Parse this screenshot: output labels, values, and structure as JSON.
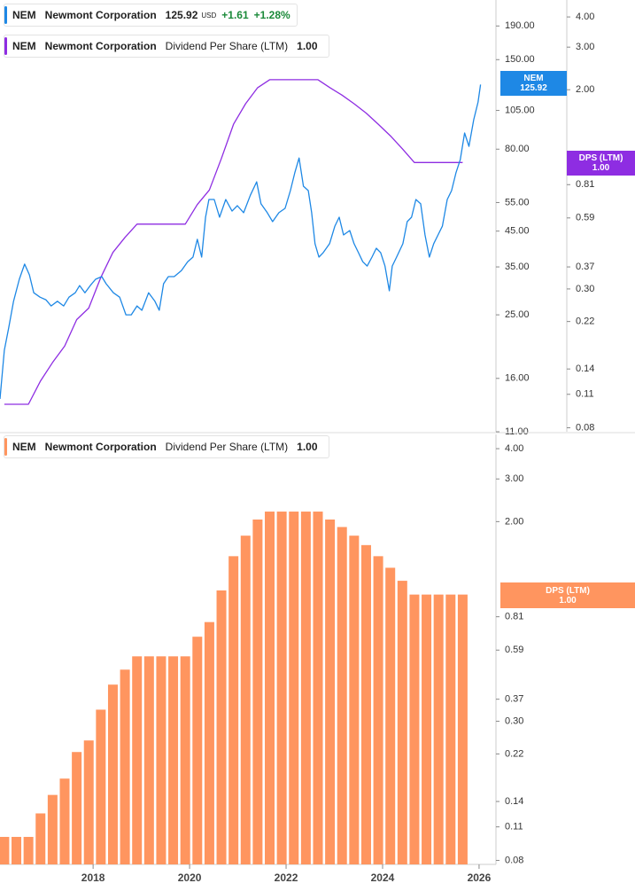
{
  "chart_data": [
    {
      "type": "line",
      "log_scale": true,
      "legend": [
        {
          "ticker": "NEM",
          "name": "Newmont Corporation",
          "price": "125.92",
          "currency": "USD",
          "change": "+1.61",
          "change_pct": "+1.28%"
        },
        {
          "ticker": "NEM",
          "name": "Newmont Corporation",
          "metric": "Dividend Per Share (LTM)",
          "value": "1.00"
        }
      ],
      "xlim": [
        2016.07,
        2026.35
      ],
      "ylim": [
        11,
        228
      ],
      "yticks": [
        {
          "value": 190,
          "label": "190.00"
        },
        {
          "value": 150,
          "label": "150.00"
        },
        {
          "value": 105,
          "label": "105.00"
        },
        {
          "value": 80,
          "label": "80.00"
        },
        {
          "value": 55,
          "label": "55.00"
        },
        {
          "value": 45,
          "label": "45.00"
        },
        {
          "value": 35,
          "label": "35.00"
        },
        {
          "value": 25,
          "label": "25.00"
        },
        {
          "value": 16,
          "label": "16.00"
        },
        {
          "value": 11,
          "label": "11.00"
        }
      ],
      "y2lim": [
        0.077,
        4.7
      ],
      "y2ticks": [
        {
          "value": 4,
          "label": "4.00"
        },
        {
          "value": 3,
          "label": "3.00"
        },
        {
          "value": 2,
          "label": "2.00"
        },
        {
          "value": 0.81,
          "label": "0.81"
        },
        {
          "value": 0.59,
          "label": "0.59"
        },
        {
          "value": 0.37,
          "label": "0.37"
        },
        {
          "value": 0.3,
          "label": "0.30"
        },
        {
          "value": 0.22,
          "label": "0.22"
        },
        {
          "value": 0.14,
          "label": "0.14"
        },
        {
          "value": 0.11,
          "label": "0.11"
        },
        {
          "value": 0.08,
          "label": "0.08"
        }
      ],
      "series": [
        {
          "name": "NEM",
          "color": "#1e88e5",
          "x": [
            2016.07,
            2016.16,
            2016.25,
            2016.35,
            2016.47,
            2016.58,
            2016.68,
            2016.77,
            2016.9,
            2017.02,
            2017.13,
            2017.26,
            2017.39,
            2017.5,
            2017.63,
            2017.72,
            2017.83,
            2017.94,
            2018.05,
            2018.18,
            2018.27,
            2018.42,
            2018.55,
            2018.68,
            2018.79,
            2018.91,
            2019.01,
            2019.15,
            2019.28,
            2019.37,
            2019.46,
            2019.56,
            2019.68,
            2019.83,
            2019.96,
            2020.07,
            2020.16,
            2020.25,
            2020.33,
            2020.4,
            2020.51,
            2020.62,
            2020.75,
            2020.88,
            2020.99,
            2021.12,
            2021.26,
            2021.39,
            2021.48,
            2021.61,
            2021.72,
            2021.85,
            2021.98,
            2022.09,
            2022.18,
            2022.27,
            2022.36,
            2022.46,
            2022.53,
            2022.6,
            2022.68,
            2022.77,
            2022.9,
            2023.01,
            2023.1,
            2023.19,
            2023.32,
            2023.41,
            2023.5,
            2023.59,
            2023.68,
            2023.78,
            2023.87,
            2023.96,
            2024.05,
            2024.14,
            2024.2,
            2024.29,
            2024.42,
            2024.51,
            2024.6,
            2024.69,
            2024.79,
            2024.88,
            2024.97,
            2025.06,
            2025.15,
            2025.24,
            2025.34,
            2025.43,
            2025.52,
            2025.61,
            2025.7,
            2025.79,
            2025.89,
            2025.98,
            2026.03
          ],
          "values": [
            13.85,
            19.5,
            22.8,
            27.5,
            32.1,
            35.7,
            33.1,
            29.2,
            28.3,
            27.8,
            26.6,
            27.5,
            26.6,
            28.3,
            29.2,
            30.7,
            29.2,
            30.7,
            32.1,
            32.7,
            31.1,
            29.2,
            28.3,
            25.0,
            25.0,
            26.6,
            25.8,
            29.2,
            27.5,
            25.8,
            31.1,
            32.7,
            32.7,
            34.1,
            36.3,
            37.5,
            42.5,
            37.5,
            49.6,
            56.2,
            56.2,
            49.6,
            56.2,
            51.8,
            53.8,
            51.2,
            57.9,
            63.6,
            54.5,
            51.2,
            48.1,
            51.2,
            52.8,
            59.8,
            67.7,
            75.2,
            61.7,
            59.8,
            51.2,
            41.2,
            37.5,
            38.7,
            41.2,
            46.6,
            49.6,
            43.8,
            45.2,
            41.2,
            38.7,
            36.3,
            35.2,
            37.5,
            39.9,
            38.7,
            35.2,
            29.6,
            35.2,
            37.5,
            41.2,
            48.1,
            49.6,
            56.2,
            54.5,
            43.8,
            37.5,
            41.2,
            43.8,
            46.6,
            56.2,
            59.8,
            67.7,
            74.3,
            89.6,
            81.6,
            98.4,
            111.4,
            125.92
          ]
        },
        {
          "name": "DPS (LTM)",
          "color": "#8e2de2",
          "axis": "y2",
          "last_value_label": "1.00",
          "x": [
            2016.16,
            2016.41,
            2016.66,
            2016.91,
            2017.16,
            2017.41,
            2017.66,
            2017.91,
            2018.16,
            2018.41,
            2018.66,
            2018.91,
            2019.16,
            2019.41,
            2019.66,
            2019.91,
            2020.16,
            2020.41,
            2020.66,
            2020.91,
            2021.16,
            2021.41,
            2021.66,
            2021.91,
            2022.16,
            2022.41,
            2022.66,
            2022.91,
            2023.16,
            2023.41,
            2023.66,
            2023.91,
            2024.16,
            2024.41,
            2024.66,
            2024.91,
            2025.16,
            2025.41,
            2025.66
          ],
          "values": [
            0.1,
            0.1,
            0.1,
            0.125,
            0.149,
            0.174,
            0.224,
            0.25,
            0.335,
            0.425,
            0.49,
            0.556,
            0.556,
            0.556,
            0.556,
            0.556,
            0.67,
            0.77,
            1.04,
            1.44,
            1.75,
            2.04,
            2.2,
            2.2,
            2.2,
            2.2,
            2.2,
            2.04,
            1.9,
            1.75,
            1.6,
            1.44,
            1.29,
            1.14,
            1.0,
            1.0,
            1.0,
            1.0,
            1.0
          ]
        }
      ]
    },
    {
      "type": "bar",
      "log_scale": true,
      "legend": [
        {
          "ticker": "NEM",
          "name": "Newmont Corporation",
          "metric": "Dividend Per Share (LTM)",
          "value": "1.00"
        }
      ],
      "xlim": [
        2016.07,
        2026.35
      ],
      "xticks": [
        2018,
        2020,
        2022,
        2024,
        2026
      ],
      "ylim": [
        0.077,
        4.58
      ],
      "yticks": [
        {
          "value": 4,
          "label": "4.00"
        },
        {
          "value": 3,
          "label": "3.00"
        },
        {
          "value": 2,
          "label": "2.00"
        },
        {
          "value": 0.81,
          "label": "0.81"
        },
        {
          "value": 0.59,
          "label": "0.59"
        },
        {
          "value": 0.37,
          "label": "0.37"
        },
        {
          "value": 0.3,
          "label": "0.30"
        },
        {
          "value": 0.22,
          "label": "0.22"
        },
        {
          "value": 0.14,
          "label": "0.14"
        },
        {
          "value": 0.11,
          "label": "0.11"
        },
        {
          "value": 0.08,
          "label": "0.08"
        }
      ],
      "series": [
        {
          "name": "DPS (LTM)",
          "color": "#ff955f",
          "last_value_label": "1.00",
          "x": [
            2016.16,
            2016.41,
            2016.66,
            2016.91,
            2017.16,
            2017.41,
            2017.66,
            2017.91,
            2018.16,
            2018.41,
            2018.66,
            2018.91,
            2019.16,
            2019.41,
            2019.66,
            2019.91,
            2020.16,
            2020.41,
            2020.66,
            2020.91,
            2021.16,
            2021.41,
            2021.66,
            2021.91,
            2022.16,
            2022.41,
            2022.66,
            2022.91,
            2023.16,
            2023.41,
            2023.66,
            2023.91,
            2024.16,
            2024.41,
            2024.66,
            2024.91,
            2025.16,
            2025.41,
            2025.66
          ],
          "values": [
            0.1,
            0.1,
            0.1,
            0.125,
            0.149,
            0.174,
            0.224,
            0.25,
            0.335,
            0.425,
            0.49,
            0.556,
            0.556,
            0.556,
            0.556,
            0.556,
            0.67,
            0.77,
            1.04,
            1.44,
            1.75,
            2.04,
            2.2,
            2.2,
            2.2,
            2.2,
            2.2,
            2.04,
            1.9,
            1.75,
            1.6,
            1.44,
            1.29,
            1.14,
            1.0,
            1.0,
            1.0,
            1.0,
            1.0
          ]
        }
      ]
    }
  ]
}
